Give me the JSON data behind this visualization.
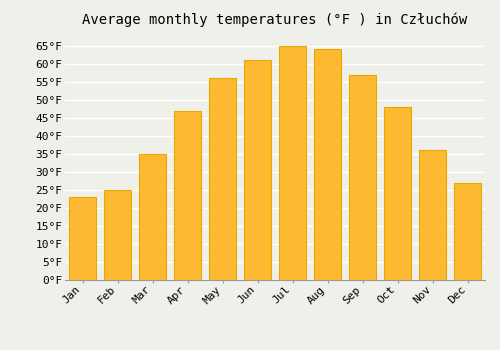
{
  "title": "Average monthly temperatures (°F ) in Człuchów",
  "months": [
    "Jan",
    "Feb",
    "Mar",
    "Apr",
    "May",
    "Jun",
    "Jul",
    "Aug",
    "Sep",
    "Oct",
    "Nov",
    "Dec"
  ],
  "values": [
    23,
    25,
    35,
    47,
    56,
    61,
    65,
    64,
    57,
    48,
    36,
    27
  ],
  "bar_color": "#FDB931",
  "bar_edge_color": "#E8A800",
  "ylim": [
    0,
    68
  ],
  "yticks": [
    0,
    5,
    10,
    15,
    20,
    25,
    30,
    35,
    40,
    45,
    50,
    55,
    60,
    65
  ],
  "ylabel_suffix": "°F",
  "background_color": "#f0f0eb",
  "grid_color": "#d8d8d8",
  "title_fontsize": 10,
  "tick_fontsize": 8,
  "font_family": "monospace"
}
